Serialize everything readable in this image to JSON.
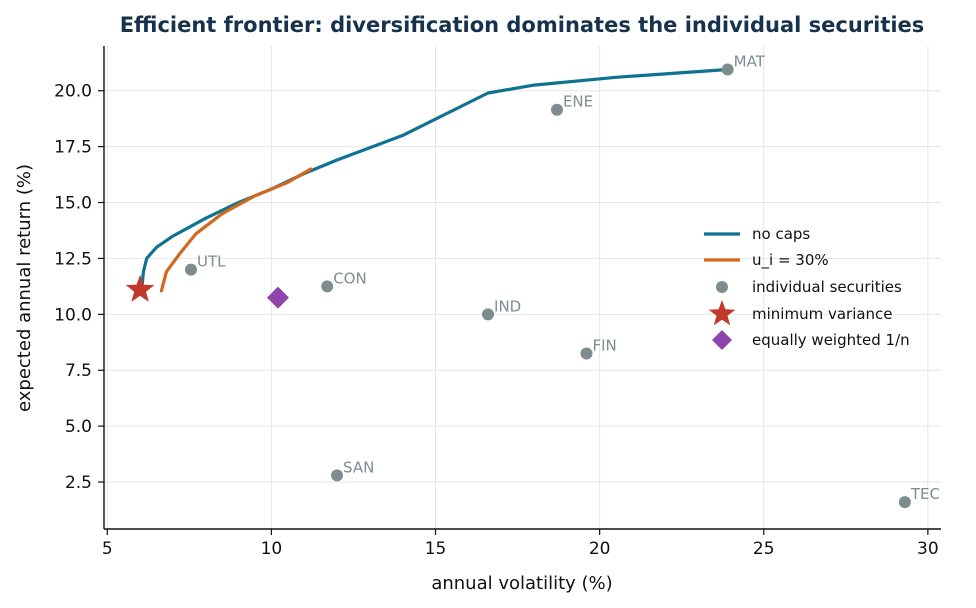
{
  "chart_data": {
    "type": "line",
    "title": "Efficient frontier: diversification dominates the individual securities",
    "xlabel": "annual volatility (%)",
    "ylabel": "expected annual return (%)",
    "xlim": [
      4.9,
      30.4
    ],
    "ylim": [
      0.4,
      22.0
    ],
    "x_ticks": [
      5,
      10,
      15,
      20,
      25,
      30
    ],
    "x_tick_labels": [
      "5",
      "10",
      "15",
      "20",
      "25",
      "30"
    ],
    "y_ticks": [
      2.5,
      5.0,
      7.5,
      10.0,
      12.5,
      15.0,
      17.5,
      20.0
    ],
    "y_tick_labels": [
      "2.5",
      "5.0",
      "7.5",
      "10.0",
      "12.5",
      "15.0",
      "17.5",
      "20.0"
    ],
    "grid": true,
    "legend_position": "right",
    "series": [
      {
        "name": "no caps",
        "color": "#0f7291",
        "points": [
          [
            6.05,
            11.1
          ],
          [
            6.1,
            11.9
          ],
          [
            6.2,
            12.5
          ],
          [
            6.5,
            13.0
          ],
          [
            7.0,
            13.5
          ],
          [
            8.0,
            14.3
          ],
          [
            9.0,
            15.0
          ],
          [
            10.0,
            15.6
          ],
          [
            11.0,
            16.3
          ],
          [
            12.0,
            16.9
          ],
          [
            14.0,
            18.0
          ],
          [
            16.6,
            19.9
          ],
          [
            18.0,
            20.25
          ],
          [
            20.5,
            20.6
          ],
          [
            23.9,
            20.95
          ]
        ]
      },
      {
        "name": "u_i = 30%",
        "color": "#d2691e",
        "points": [
          [
            6.65,
            11.05
          ],
          [
            6.8,
            11.9
          ],
          [
            7.2,
            12.7
          ],
          [
            7.7,
            13.6
          ],
          [
            8.5,
            14.5
          ],
          [
            9.5,
            15.3
          ],
          [
            10.5,
            15.9
          ],
          [
            11.2,
            16.5
          ]
        ]
      }
    ],
    "securities": {
      "name": "individual securities",
      "color": "#7f8c8d",
      "points": [
        {
          "label": "MAT",
          "x": 23.9,
          "y": 20.95
        },
        {
          "label": "ENE",
          "x": 18.7,
          "y": 19.15
        },
        {
          "label": "UTL",
          "x": 7.55,
          "y": 12.0
        },
        {
          "label": "CON",
          "x": 11.7,
          "y": 11.25
        },
        {
          "label": "IND",
          "x": 16.6,
          "y": 10.0
        },
        {
          "label": "FIN",
          "x": 19.6,
          "y": 8.25
        },
        {
          "label": "SAN",
          "x": 12.0,
          "y": 2.8
        },
        {
          "label": "TEC",
          "x": 29.3,
          "y": 1.6
        }
      ]
    },
    "min_variance": {
      "name": "minimum variance",
      "color": "#c0392b",
      "x": 6.0,
      "y": 11.1
    },
    "equal_weight": {
      "name": "equally weighted 1/n",
      "color": "#8e44ad",
      "x": 10.2,
      "y": 10.75
    }
  }
}
